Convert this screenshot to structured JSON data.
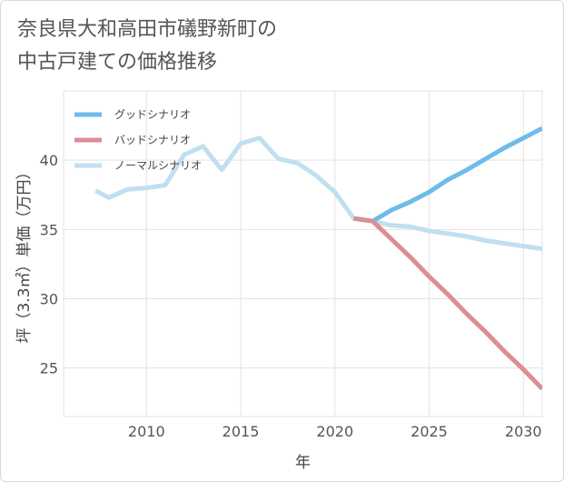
{
  "title": {
    "line1": "奈良県大和高田市礒野新町の",
    "line2": "中古戸建ての価格推移"
  },
  "chart_data": {
    "type": "line",
    "xlabel": "年",
    "ylabel": "坪（3.3㎡）単価（万円）",
    "xlim": [
      2005.6,
      2031
    ],
    "ylim": [
      21.5,
      45
    ],
    "xticks": [
      2010,
      2015,
      2020,
      2025,
      2030
    ],
    "yticks": [
      25,
      30,
      35,
      40
    ],
    "grid": true,
    "legend_position": "top-left",
    "series": [
      {
        "name": "グッドシナリオ",
        "color": "#6fbbea",
        "x": [
          2021,
          2022,
          2023,
          2024,
          2025,
          2026,
          2027,
          2028,
          2029,
          2030,
          2031
        ],
        "y": [
          35.8,
          35.6,
          36.4,
          37.0,
          37.7,
          38.6,
          39.3,
          40.1,
          40.9,
          41.6,
          42.3
        ]
      },
      {
        "name": "バッドシナリオ",
        "color": "#dc8e95",
        "x": [
          2021,
          2022,
          2023,
          2024,
          2025,
          2026,
          2027,
          2028,
          2029,
          2030,
          2031
        ],
        "y": [
          35.8,
          35.6,
          34.3,
          33.0,
          31.6,
          30.3,
          28.9,
          27.6,
          26.2,
          24.9,
          23.5
        ]
      },
      {
        "name": "ノーマルシナリオ",
        "color": "#bfe0ef",
        "x": [
          2007.3,
          2008,
          2009,
          2010,
          2011,
          2012,
          2013,
          2014,
          2015,
          2016,
          2017,
          2018,
          2019,
          2020,
          2021,
          2022,
          2023,
          2024,
          2025,
          2026,
          2027,
          2028,
          2029,
          2030,
          2031
        ],
        "y": [
          37.8,
          37.3,
          37.9,
          38.0,
          38.2,
          40.4,
          41.0,
          39.3,
          41.2,
          41.6,
          40.1,
          39.8,
          38.9,
          37.7,
          35.8,
          35.6,
          35.3,
          35.2,
          34.9,
          34.7,
          34.5,
          34.2,
          34.0,
          33.8,
          33.6
        ]
      }
    ]
  }
}
